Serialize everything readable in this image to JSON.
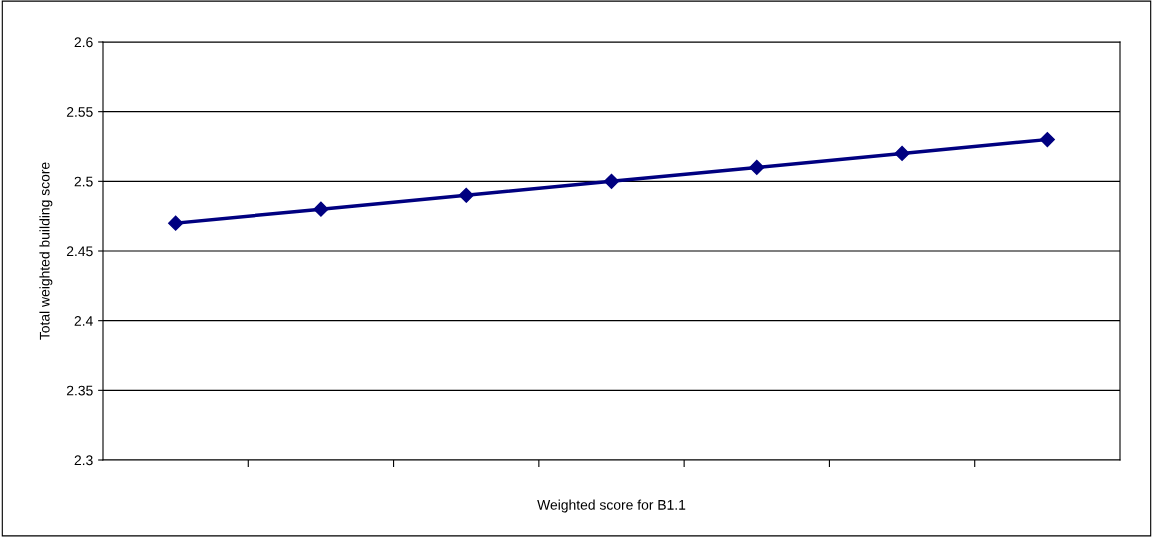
{
  "chart_data": {
    "type": "line",
    "xlabel": "Weighted score for B1.1",
    "ylabel": "Total weighted building score",
    "categories": [
      null,
      null,
      null,
      null,
      null,
      null,
      null
    ],
    "series": [
      {
        "color": "#000080",
        "values": [
          2.47,
          2.48,
          2.49,
          2.5,
          2.51,
          2.52,
          2.53
        ]
      }
    ],
    "ylim": [
      2.3,
      2.6
    ],
    "yticks": [
      2.3,
      2.35,
      2.4,
      2.45,
      2.5,
      2.55,
      2.6
    ],
    "grid": "y",
    "marker": "diamond",
    "line_style": "solid"
  }
}
